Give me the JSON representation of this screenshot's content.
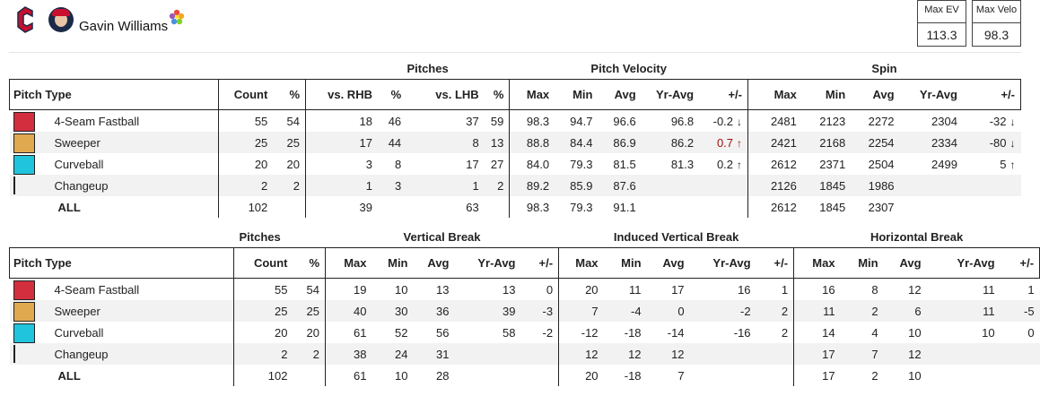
{
  "header": {
    "player_name": "Gavin Williams",
    "team_logo_icon": "guardians-c-logo-icon",
    "brand_color": "#c8102e",
    "max_ev_label": "Max EV",
    "max_ev_value": "113.3",
    "max_velo_label": "Max Velo",
    "max_velo_value": "98.3"
  },
  "table1": {
    "group_pitches": "Pitches",
    "group_velocity": "Pitch Velocity",
    "group_spin": "Spin",
    "cols": [
      "Pitch Type",
      "Count",
      "%",
      "vs. RHB",
      "%",
      "vs. LHB",
      "%",
      "Max",
      "Min",
      "Avg",
      "Yr-Avg",
      "+/-",
      "Max",
      "Min",
      "Avg",
      "Yr-Avg",
      "+/-"
    ],
    "rows": [
      {
        "color": "#d22e3e",
        "name": "4-Seam Fastball",
        "count": "55",
        "pct": "54",
        "rhb": "18",
        "rhb_pct": "46",
        "lhb": "37",
        "lhb_pct": "59",
        "vmax": "98.3",
        "vmin": "94.7",
        "vavg": "96.6",
        "vyr": "96.8",
        "vdiff": "-0.2",
        "vdir": "↓",
        "smax": "2481",
        "smin": "2123",
        "savg": "2272",
        "syr": "2304",
        "sdiff": "-32",
        "sdir": "↓"
      },
      {
        "color": "#e0a84f",
        "name": "Sweeper",
        "count": "25",
        "pct": "25",
        "rhb": "17",
        "rhb_pct": "44",
        "lhb": "8",
        "lhb_pct": "13",
        "vmax": "88.8",
        "vmin": "84.4",
        "vavg": "86.9",
        "vyr": "86.2",
        "vdiff": "0.7",
        "vdir": "↑",
        "smax": "2421",
        "smin": "2168",
        "savg": "2254",
        "syr": "2334",
        "sdiff": "-80",
        "sdir": "↓"
      },
      {
        "color": "#21c4dd",
        "name": "Curveball",
        "count": "20",
        "pct": "20",
        "rhb": "3",
        "rhb_pct": "8",
        "lhb": "17",
        "lhb_pct": "27",
        "vmax": "84.0",
        "vmin": "79.3",
        "vavg": "81.5",
        "vyr": "81.3",
        "vdiff": "0.2",
        "vdir": "↑",
        "smax": "2612",
        "smin": "2371",
        "savg": "2504",
        "syr": "2499",
        "sdiff": "5",
        "sdir": "↑"
      },
      {
        "color": "#222222",
        "name": "Changeup",
        "count": "2",
        "pct": "2",
        "rhb": "1",
        "rhb_pct": "3",
        "lhb": "1",
        "lhb_pct": "2",
        "vmax": "89.2",
        "vmin": "85.9",
        "vavg": "87.6",
        "vyr": "",
        "vdiff": "",
        "vdir": "",
        "smax": "2126",
        "smin": "1845",
        "savg": "1986",
        "syr": "",
        "sdiff": "",
        "sdir": ""
      }
    ],
    "all": {
      "label": "ALL",
      "count": "102",
      "rhb": "39",
      "lhb": "63",
      "vmax": "98.3",
      "vmin": "79.3",
      "vavg": "91.1",
      "smax": "2612",
      "smin": "1845",
      "savg": "2307"
    }
  },
  "table2": {
    "group_pitches": "Pitches",
    "group_vb": "Vertical Break",
    "group_ivb": "Induced Vertical Break",
    "group_hb": "Horizontal Break",
    "cols": [
      "Pitch Type",
      "Count",
      "%",
      "Max",
      "Min",
      "Avg",
      "Yr-Avg",
      "+/-",
      "Max",
      "Min",
      "Avg",
      "Yr-Avg",
      "+/-",
      "Max",
      "Min",
      "Avg",
      "Yr-Avg",
      "+/-"
    ],
    "rows": [
      {
        "color": "#d22e3e",
        "name": "4-Seam Fastball",
        "count": "55",
        "pct": "54",
        "vmax": "19",
        "vmin": "10",
        "vavg": "13",
        "vyr": "13",
        "vdiff": "0",
        "imax": "20",
        "imin": "11",
        "iavg": "17",
        "iyr": "16",
        "idiff": "1",
        "hmax": "16",
        "hmin": "8",
        "havg": "12",
        "hyr": "11",
        "hdiff": "1"
      },
      {
        "color": "#e0a84f",
        "name": "Sweeper",
        "count": "25",
        "pct": "25",
        "vmax": "40",
        "vmin": "30",
        "vavg": "36",
        "vyr": "39",
        "vdiff": "-3",
        "imax": "7",
        "imin": "-4",
        "iavg": "0",
        "iyr": "-2",
        "idiff": "2",
        "hmax": "11",
        "hmin": "2",
        "havg": "6",
        "hyr": "11",
        "hdiff": "-5"
      },
      {
        "color": "#21c4dd",
        "name": "Curveball",
        "count": "20",
        "pct": "20",
        "vmax": "61",
        "vmin": "52",
        "vavg": "56",
        "vyr": "58",
        "vdiff": "-2",
        "imax": "-12",
        "imin": "-18",
        "iavg": "-14",
        "iyr": "-16",
        "idiff": "2",
        "hmax": "14",
        "hmin": "4",
        "havg": "10",
        "hyr": "10",
        "hdiff": "0"
      },
      {
        "color": "#222222",
        "name": "Changeup",
        "count": "2",
        "pct": "2",
        "vmax": "38",
        "vmin": "24",
        "vavg": "31",
        "vyr": "",
        "vdiff": "",
        "imax": "12",
        "imin": "12",
        "iavg": "12",
        "iyr": "",
        "idiff": "",
        "hmax": "17",
        "hmin": "7",
        "havg": "12",
        "hyr": "",
        "hdiff": ""
      }
    ],
    "all": {
      "label": "ALL",
      "count": "102",
      "vmax": "61",
      "vmin": "10",
      "vavg": "28",
      "imax": "20",
      "imin": "-18",
      "iavg": "7",
      "hmax": "17",
      "hmin": "2",
      "havg": "10"
    }
  }
}
